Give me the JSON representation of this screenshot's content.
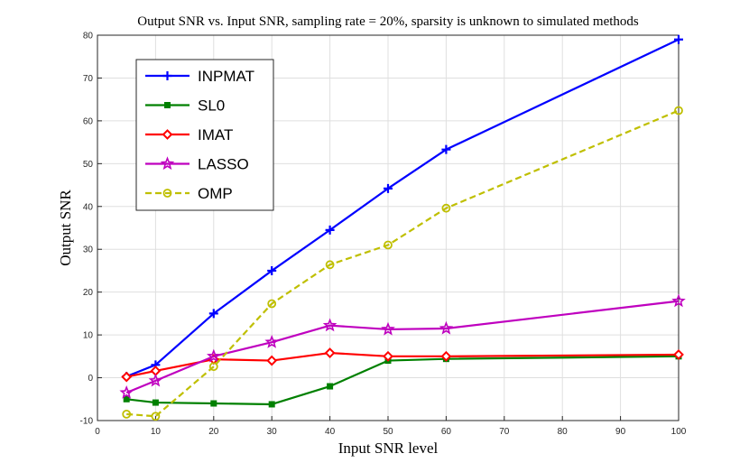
{
  "chart_data": {
    "type": "line",
    "title": "Output SNR vs. Input SNR, sampling rate = 20%, sparsity is unknown to simulated methods",
    "xlabel": "Input SNR level",
    "ylabel": "Output SNR",
    "xlim": [
      0,
      100
    ],
    "ylim": [
      -10,
      80
    ],
    "xticks": [
      0,
      10,
      20,
      30,
      40,
      50,
      60,
      70,
      80,
      90,
      100
    ],
    "yticks": [
      -10,
      0,
      10,
      20,
      30,
      40,
      50,
      60,
      70,
      80
    ],
    "grid": true,
    "legend_position": "top-left",
    "x": [
      5,
      10,
      20,
      30,
      40,
      50,
      60,
      100
    ],
    "series": [
      {
        "name": "INPMAT",
        "color": "#0000ff",
        "marker": "plus",
        "dash": "solid",
        "values": [
          0.3,
          3.0,
          15.0,
          25.0,
          34.5,
          44.2,
          53.3,
          79.0
        ]
      },
      {
        "name": "SL0",
        "color": "#008000",
        "marker": "square",
        "dash": "solid",
        "values": [
          -5.0,
          -5.8,
          -6.0,
          -6.2,
          -2.0,
          4.0,
          4.4,
          5.0
        ]
      },
      {
        "name": "IMAT",
        "color": "#ff0000",
        "marker": "diamond",
        "dash": "solid",
        "values": [
          0.2,
          1.6,
          4.3,
          4.0,
          5.8,
          5.0,
          5.0,
          5.4
        ]
      },
      {
        "name": "LASSO",
        "color": "#bf00bf",
        "marker": "star",
        "dash": "solid",
        "values": [
          -3.5,
          -0.7,
          5.0,
          8.3,
          12.2,
          11.3,
          11.5,
          17.9
        ]
      },
      {
        "name": "OMP",
        "color": "#bfbf00",
        "marker": "circle",
        "dash": "dashed",
        "values": [
          -8.5,
          -9.0,
          2.6,
          17.3,
          26.4,
          31.0,
          39.6,
          62.4
        ]
      }
    ]
  }
}
